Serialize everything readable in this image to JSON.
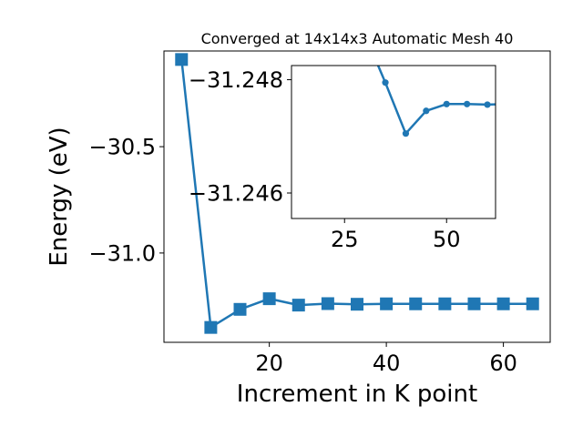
{
  "chart_data": [
    {
      "type": "line",
      "title": "Converged at 14x14x3 Automatic Mesh 40",
      "xlabel": "Increment in K point",
      "ylabel": "Energy (eV)",
      "xlim": [
        2,
        68
      ],
      "ylim": [
        -31.42,
        -30.05
      ],
      "xticks": [
        20,
        40,
        60
      ],
      "xtick_labels": [
        "20",
        "40",
        "60"
      ],
      "yticks": [
        -30.5,
        -31.0
      ],
      "ytick_labels": [
        "−30.5",
        "−31.0"
      ],
      "grid": false,
      "marker": "square",
      "color": "#1f77b4",
      "series": [
        {
          "x": [
            5,
            10,
            15,
            20,
            25,
            30,
            35,
            40,
            45,
            50,
            55,
            60,
            65
          ],
          "y": [
            -30.09,
            -31.35,
            -31.265,
            -31.215,
            -31.245,
            -31.238,
            -31.241,
            -31.239,
            -31.239,
            -31.239,
            -31.239,
            -31.239,
            -31.239
          ]
        }
      ]
    },
    {
      "type": "line",
      "title": "",
      "xlabel": "",
      "ylabel": "",
      "xlim": [
        12,
        62
      ],
      "ylim": [
        -31.24555,
        -31.24825
      ],
      "xticks": [
        25,
        50
      ],
      "xtick_labels": [
        "25",
        "50"
      ],
      "yticks": [
        -31.248,
        -31.246
      ],
      "ytick_labels": [
        "−31.248",
        "−31.246"
      ],
      "grid": false,
      "marker": "circle",
      "color": "#1f77b4",
      "series": [
        {
          "x": [
            30,
            35,
            40,
            45,
            50,
            55,
            60,
            65
          ],
          "y": [
            -31.2488,
            -31.24795,
            -31.24705,
            -31.24745,
            -31.24757,
            -31.24757,
            -31.24756,
            -31.24757
          ]
        }
      ]
    }
  ]
}
